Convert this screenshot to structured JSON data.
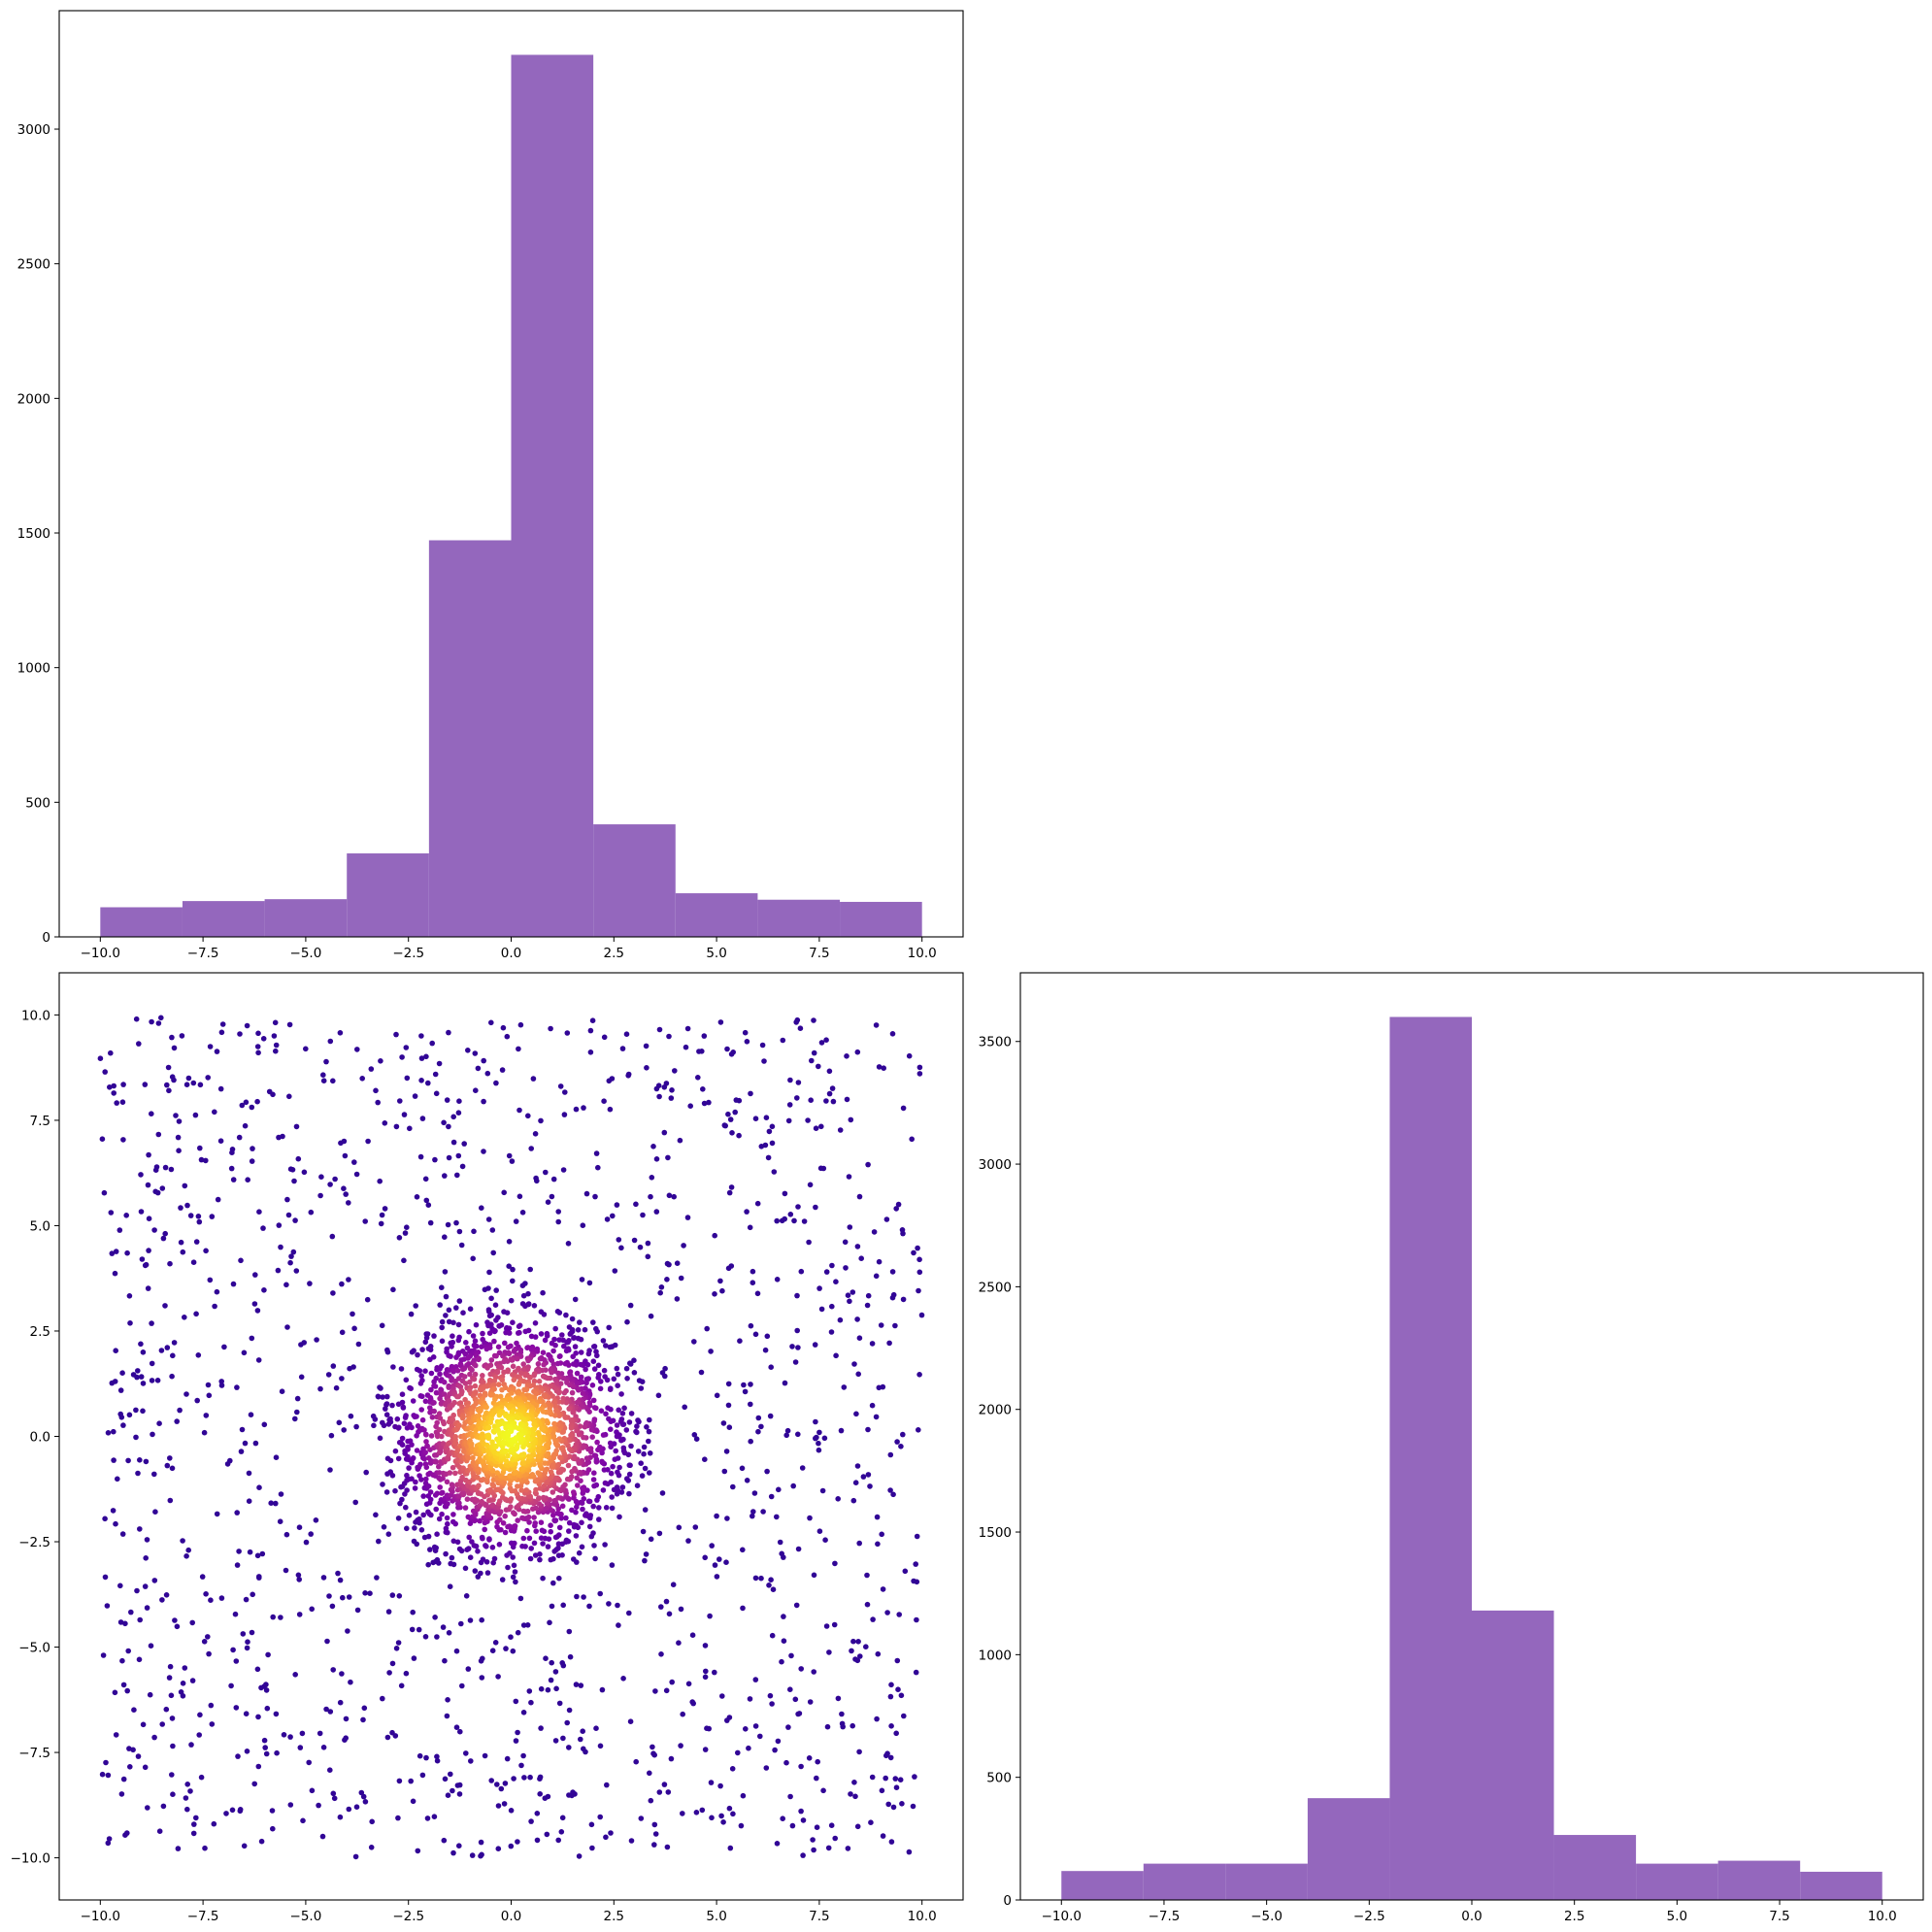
{
  "chart_data": [
    {
      "type": "bar",
      "subtype": "histogram",
      "panel": "top-left",
      "color": "#9467bd",
      "bin_edges": [
        -10,
        -8,
        -6,
        -4,
        -2,
        0,
        2,
        4,
        6,
        8,
        10
      ],
      "values": [
        110,
        133,
        140,
        310,
        1473,
        3276,
        418,
        162,
        138,
        130
      ],
      "xlim": [
        -11,
        11
      ],
      "ylim": [
        0,
        3440
      ],
      "xticks": [
        -10,
        -7.5,
        -5,
        -2.5,
        0,
        2.5,
        5,
        7.5,
        10
      ],
      "xtick_labels": [
        "−10.0",
        "−7.5",
        "−5.0",
        "−2.5",
        "0.0",
        "2.5",
        "5.0",
        "7.5",
        "10.0"
      ],
      "yticks": [
        0,
        500,
        1000,
        1500,
        2000,
        2500,
        3000
      ],
      "ytick_labels": [
        "0",
        "500",
        "1000",
        "1500",
        "2000",
        "2500",
        "3000"
      ],
      "title": "",
      "xlabel": "",
      "ylabel": ""
    },
    {
      "type": "scatter",
      "panel": "bottom-left",
      "colormap": "plasma",
      "description_of_distribution": {
        "core_points": 2200,
        "core_radius_max": 3.5,
        "core_sigma": 1.35,
        "uniform_points": 1450,
        "uniform_range": [
          -10,
          10
        ]
      },
      "xlim": [
        -11,
        11
      ],
      "ylim": [
        -11,
        11
      ],
      "xticks": [
        -10,
        -7.5,
        -5,
        -2.5,
        0,
        2.5,
        5,
        7.5,
        10
      ],
      "xtick_labels": [
        "−10.0",
        "−7.5",
        "−5.0",
        "−2.5",
        "0.0",
        "2.5",
        "5.0",
        "7.5",
        "10.0"
      ],
      "yticks": [
        -10,
        -7.5,
        -5,
        -2.5,
        0,
        2.5,
        5,
        7.5,
        10
      ],
      "ytick_labels": [
        "−10.0",
        "−7.5",
        "−5.0",
        "−2.5",
        "0.0",
        "2.5",
        "5.0",
        "7.5",
        "10.0"
      ],
      "title": "",
      "xlabel": "",
      "ylabel": ""
    },
    {
      "type": "bar",
      "subtype": "histogram",
      "panel": "bottom-right",
      "color": "#9467bd",
      "bin_edges": [
        -10,
        -8,
        -6,
        -4,
        -2,
        0,
        2,
        4,
        6,
        8,
        10
      ],
      "values": [
        118,
        148,
        148,
        415,
        3600,
        1180,
        265,
        148,
        160,
        115
      ],
      "xlim": [
        -11,
        11
      ],
      "ylim": [
        0,
        3780
      ],
      "xticks": [
        -10,
        -7.5,
        -5,
        -2.5,
        0,
        2.5,
        5,
        7.5,
        10
      ],
      "xtick_labels": [
        "−10.0",
        "−7.5",
        "−5.0",
        "−2.5",
        "0.0",
        "2.5",
        "5.0",
        "7.5",
        "10.0"
      ],
      "yticks": [
        0,
        500,
        1000,
        1500,
        2000,
        2500,
        3000,
        3500
      ],
      "ytick_labels": [
        "0",
        "500",
        "1000",
        "1500",
        "2000",
        "2500",
        "3000",
        "3500"
      ],
      "title": "",
      "xlabel": "",
      "ylabel": ""
    }
  ]
}
